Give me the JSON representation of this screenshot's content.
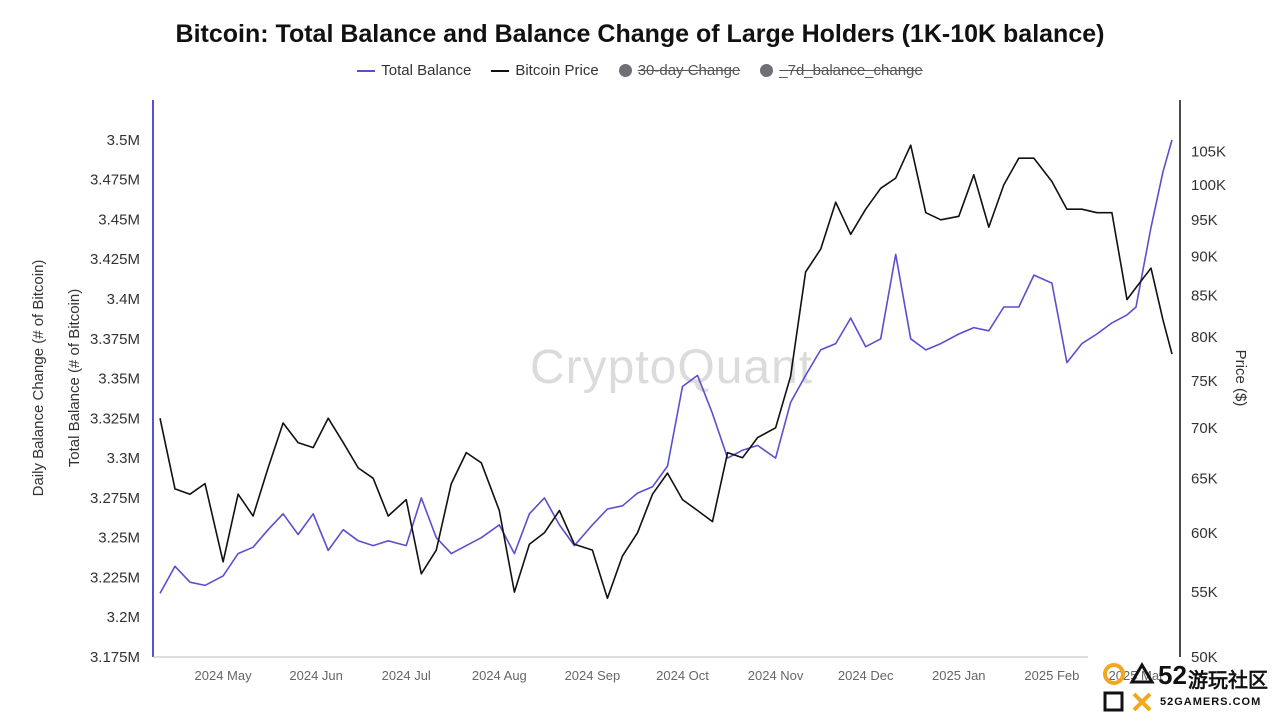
{
  "chart_data": {
    "type": "line",
    "title": "Bitcoin: Total Balance and Balance Change of Large Holders (1K-10K balance)",
    "legend": [
      {
        "name": "Total Balance",
        "color": "#5b4fcf",
        "hidden": false,
        "kind": "line"
      },
      {
        "name": "Bitcoin Price",
        "color": "#111111",
        "hidden": false,
        "kind": "line"
      },
      {
        "name": "30-day Change",
        "color": "#6f6f78",
        "hidden": true,
        "kind": "dot"
      },
      {
        "name": "_7d_balance_change",
        "color": "#6f6f78",
        "hidden": true,
        "kind": "dot"
      }
    ],
    "legend_position": "top-center",
    "y_left_label_outer": "Daily Balance Change (# of Bitcoin)",
    "y_left_label_inner": "Total Balance (# of Bitcoin)",
    "y_right_label": "Price ($)",
    "y_left_ticks": [
      "3.5M",
      "3.475M",
      "3.45M",
      "3.425M",
      "3.4M",
      "3.375M",
      "3.35M",
      "3.325M",
      "3.3M",
      "3.275M",
      "3.25M",
      "3.225M",
      "3.2M",
      "3.175M"
    ],
    "y_left_values": [
      3500000,
      3475000,
      3450000,
      3425000,
      3400000,
      3375000,
      3350000,
      3325000,
      3300000,
      3275000,
      3250000,
      3225000,
      3200000,
      3175000
    ],
    "y_right_ticks": [
      "105K",
      "100K",
      "95K",
      "90K",
      "85K",
      "80K",
      "75K",
      "70K",
      "65K",
      "60K",
      "55K",
      "50K"
    ],
    "y_right_values": [
      105000,
      100000,
      95000,
      90000,
      85000,
      80000,
      75000,
      70000,
      65000,
      60000,
      55000,
      50000
    ],
    "y_right_scale": "log",
    "x_ticks": [
      "2024 May",
      "2024 Jun",
      "2024 Jul",
      "2024 Aug",
      "2024 Sep",
      "2024 Oct",
      "2024 Nov",
      "2024 Dec",
      "2025 Jan",
      "2025 Feb",
      "2025 Mar"
    ],
    "x_tick_dates": [
      "2024-05-01",
      "2024-06-01",
      "2024-07-01",
      "2024-08-01",
      "2024-09-01",
      "2024-10-01",
      "2024-11-01",
      "2024-12-01",
      "2025-01-01",
      "2025-02-01",
      "2025-03-01"
    ],
    "x_range": [
      "2024-04-10",
      "2025-03-13"
    ],
    "series": [
      {
        "name": "Total Balance",
        "axis": "left",
        "color": "#5b4fcf",
        "x": [
          "2024-04-10",
          "2024-04-15",
          "2024-04-20",
          "2024-04-25",
          "2024-05-01",
          "2024-05-06",
          "2024-05-11",
          "2024-05-16",
          "2024-05-21",
          "2024-05-26",
          "2024-05-31",
          "2024-06-05",
          "2024-06-10",
          "2024-06-15",
          "2024-06-20",
          "2024-06-25",
          "2024-07-01",
          "2024-07-06",
          "2024-07-11",
          "2024-07-16",
          "2024-07-21",
          "2024-07-26",
          "2024-08-01",
          "2024-08-06",
          "2024-08-11",
          "2024-08-16",
          "2024-08-21",
          "2024-08-26",
          "2024-09-01",
          "2024-09-06",
          "2024-09-11",
          "2024-09-16",
          "2024-09-21",
          "2024-09-26",
          "2024-10-01",
          "2024-10-06",
          "2024-10-11",
          "2024-10-16",
          "2024-10-21",
          "2024-10-26",
          "2024-11-01",
          "2024-11-06",
          "2024-11-11",
          "2024-11-16",
          "2024-11-21",
          "2024-11-26",
          "2024-12-01",
          "2024-12-06",
          "2024-12-11",
          "2024-12-16",
          "2024-12-21",
          "2024-12-26",
          "2025-01-01",
          "2025-01-06",
          "2025-01-11",
          "2025-01-16",
          "2025-01-21",
          "2025-01-26",
          "2025-02-01",
          "2025-02-06",
          "2025-02-11",
          "2025-02-16",
          "2025-02-21",
          "2025-02-26",
          "2025-03-01",
          "2025-03-06",
          "2025-03-10",
          "2025-03-13"
        ],
        "y": [
          3215000,
          3232000,
          3222000,
          3220000,
          3226000,
          3240000,
          3244000,
          3255000,
          3265000,
          3252000,
          3265000,
          3242000,
          3255000,
          3248000,
          3245000,
          3248000,
          3245000,
          3275000,
          3250000,
          3240000,
          3245000,
          3250000,
          3258000,
          3240000,
          3265000,
          3275000,
          3258000,
          3245000,
          3258000,
          3268000,
          3270000,
          3278000,
          3282000,
          3295000,
          3345000,
          3352000,
          3328000,
          3300000,
          3305000,
          3308000,
          3300000,
          3335000,
          3352000,
          3368000,
          3372000,
          3388000,
          3370000,
          3375000,
          3428000,
          3375000,
          3368000,
          3372000,
          3378000,
          3382000,
          3380000,
          3395000,
          3395000,
          3415000,
          3410000,
          3360000,
          3372000,
          3378000,
          3385000,
          3390000,
          3395000,
          3445000,
          3480000,
          3500000
        ]
      },
      {
        "name": "Bitcoin Price",
        "axis": "right",
        "color": "#111111",
        "x": [
          "2024-04-10",
          "2024-04-15",
          "2024-04-20",
          "2024-04-25",
          "2024-05-01",
          "2024-05-06",
          "2024-05-11",
          "2024-05-16",
          "2024-05-21",
          "2024-05-26",
          "2024-05-31",
          "2024-06-05",
          "2024-06-10",
          "2024-06-15",
          "2024-06-20",
          "2024-06-25",
          "2024-07-01",
          "2024-07-06",
          "2024-07-11",
          "2024-07-16",
          "2024-07-21",
          "2024-07-26",
          "2024-08-01",
          "2024-08-06",
          "2024-08-11",
          "2024-08-16",
          "2024-08-21",
          "2024-08-26",
          "2024-09-01",
          "2024-09-06",
          "2024-09-11",
          "2024-09-16",
          "2024-09-21",
          "2024-09-26",
          "2024-10-01",
          "2024-10-06",
          "2024-10-11",
          "2024-10-16",
          "2024-10-21",
          "2024-10-26",
          "2024-11-01",
          "2024-11-06",
          "2024-11-11",
          "2024-11-16",
          "2024-11-21",
          "2024-11-26",
          "2024-12-01",
          "2024-12-06",
          "2024-12-11",
          "2024-12-16",
          "2024-12-21",
          "2024-12-26",
          "2025-01-01",
          "2025-01-06",
          "2025-01-11",
          "2025-01-16",
          "2025-01-21",
          "2025-01-26",
          "2025-02-01",
          "2025-02-06",
          "2025-02-11",
          "2025-02-16",
          "2025-02-21",
          "2025-02-26",
          "2025-03-01",
          "2025-03-06",
          "2025-03-10",
          "2025-03-13"
        ],
        "y": [
          71000,
          64000,
          63500,
          64500,
          57500,
          63500,
          61500,
          66000,
          70500,
          68500,
          68000,
          71000,
          68500,
          66000,
          65000,
          61500,
          63000,
          56500,
          58500,
          64500,
          67500,
          66500,
          62000,
          55000,
          59000,
          60000,
          62000,
          59000,
          58500,
          54500,
          58000,
          60000,
          63500,
          65500,
          63000,
          62000,
          61000,
          67500,
          67000,
          69000,
          70000,
          75500,
          88000,
          91000,
          97500,
          93000,
          96500,
          99500,
          101000,
          106000,
          96000,
          95000,
          95500,
          101500,
          94000,
          100000,
          104000,
          104000,
          100500,
          96500,
          96500,
          96000,
          96000,
          84500,
          86000,
          88500,
          82000,
          78000
        ]
      }
    ],
    "watermark": "CryptoQuant",
    "logo": {
      "number": "52",
      "chinese": "游玩社区",
      "english": "52GAMERS.COM"
    }
  }
}
